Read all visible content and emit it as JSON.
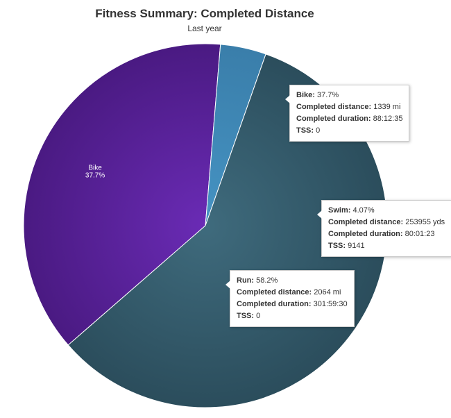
{
  "chart_data": {
    "type": "pie",
    "title": "Fitness Summary: Completed Distance",
    "subtitle": "Last year",
    "slices": [
      {
        "name": "Bike",
        "pct_label": "37.7%",
        "value": 37.7,
        "color": "#6a2bb5",
        "edge": "#4a1a82",
        "details": [
          {
            "label": "Bike:",
            "value": "37.7%"
          },
          {
            "label": "Completed distance:",
            "value": "1339 mi"
          },
          {
            "label": "Completed duration:",
            "value": "88:12:35"
          },
          {
            "label": "TSS:",
            "value": "0"
          }
        ]
      },
      {
        "name": "Swim",
        "pct_label": "4.07%",
        "value": 4.07,
        "color": "#4593c3",
        "edge": "#3a7eaa",
        "details": [
          {
            "label": "Swim:",
            "value": "4.07%"
          },
          {
            "label": "Completed distance:",
            "value": "253955 yds"
          },
          {
            "label": "Completed duration:",
            "value": "80:01:23"
          },
          {
            "label": "TSS:",
            "value": "9141"
          }
        ]
      },
      {
        "name": "Run",
        "pct_label": "58.2%",
        "value": 58.2,
        "color": "#3f6b7d",
        "edge": "#2b4d5c",
        "details": [
          {
            "label": "Run:",
            "value": "58.2%"
          },
          {
            "label": "Completed distance:",
            "value": "2064 mi"
          },
          {
            "label": "Completed duration:",
            "value": "301:59:30"
          },
          {
            "label": "TSS:",
            "value": "0"
          }
        ]
      }
    ]
  }
}
